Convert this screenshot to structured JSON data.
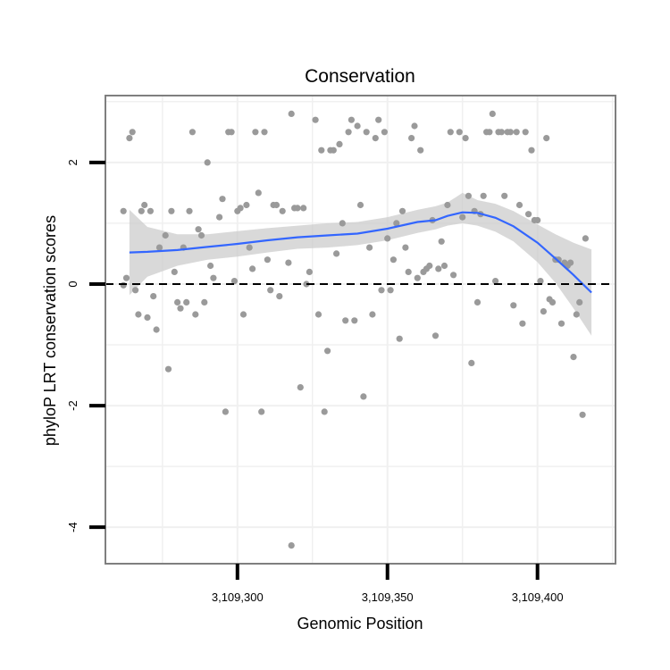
{
  "chart_data": {
    "type": "scatter",
    "title": "Conservation",
    "xlabel": "Genomic Position",
    "ylabel": "phyloP LRT conservation scores",
    "xlim": [
      3109256,
      3109426
    ],
    "ylim": [
      -4.6,
      3.1
    ],
    "x_ticks": [
      {
        "value": 3109300,
        "label": "3,109,300"
      },
      {
        "value": 3109350,
        "label": "3,109,350"
      },
      {
        "value": 3109400,
        "label": "3,109,400"
      }
    ],
    "y_ticks": [
      {
        "value": 2,
        "label": "2"
      },
      {
        "value": 0,
        "label": "0"
      },
      {
        "value": -2,
        "label": "-2"
      },
      {
        "value": -4,
        "label": "-4"
      }
    ],
    "reference_line": {
      "y": 0,
      "style": "dashed",
      "color": "#000000"
    },
    "series": [
      {
        "name": "observed scores",
        "color": "#9a9a9a",
        "points": [
          [
            3109264,
            2.4
          ],
          [
            3109265,
            2.5
          ],
          [
            3109268,
            1.2
          ],
          [
            3109269,
            1.3
          ],
          [
            3109271,
            1.2
          ],
          [
            3109274,
            0.6
          ],
          [
            3109276,
            0.8
          ],
          [
            3109277,
            -1.4
          ],
          [
            3109278,
            1.2
          ],
          [
            3109279,
            0.2
          ],
          [
            3109280,
            -0.3
          ],
          [
            3109281,
            -0.4
          ],
          [
            3109282,
            0.6
          ],
          [
            3109283,
            -0.3
          ],
          [
            3109284,
            1.2
          ],
          [
            3109285,
            2.5
          ],
          [
            3109286,
            -0.5
          ],
          [
            3109287,
            0.9
          ],
          [
            3109288,
            0.8
          ],
          [
            3109289,
            -0.3
          ],
          [
            3109290,
            2.0
          ],
          [
            3109291,
            0.3
          ],
          [
            3109292,
            0.1
          ],
          [
            3109294,
            1.1
          ],
          [
            3109295,
            1.4
          ],
          [
            3109296,
            -2.1
          ],
          [
            3109297,
            2.5
          ],
          [
            3109298,
            2.5
          ],
          [
            3109299,
            0.05
          ],
          [
            3109300,
            1.2
          ],
          [
            3109301,
            1.25
          ],
          [
            3109302,
            -0.5
          ],
          [
            3109303,
            1.3
          ],
          [
            3109304,
            0.6
          ],
          [
            3109305,
            0.25
          ],
          [
            3109306,
            2.5
          ],
          [
            3109307,
            1.5
          ],
          [
            3109308,
            -2.1
          ],
          [
            3109309,
            2.5
          ],
          [
            3109310,
            0.4
          ],
          [
            3109311,
            -0.1
          ],
          [
            3109312,
            1.3
          ],
          [
            3109313,
            1.3
          ],
          [
            3109314,
            -0.2
          ],
          [
            3109315,
            1.2
          ],
          [
            3109317,
            0.35
          ],
          [
            3109318,
            2.8
          ],
          [
            3109318,
            -4.3
          ],
          [
            3109319,
            1.25
          ],
          [
            3109320,
            1.25
          ],
          [
            3109321,
            -1.7
          ],
          [
            3109322,
            1.25
          ],
          [
            3109323,
            0.0
          ],
          [
            3109324,
            0.2
          ],
          [
            3109326,
            2.7
          ],
          [
            3109327,
            -0.5
          ],
          [
            3109328,
            2.2
          ],
          [
            3109329,
            -2.1
          ],
          [
            3109330,
            -1.1
          ],
          [
            3109331,
            2.2
          ],
          [
            3109332,
            2.2
          ],
          [
            3109333,
            0.5
          ],
          [
            3109334,
            2.3
          ],
          [
            3109335,
            1.0
          ],
          [
            3109336,
            -0.6
          ],
          [
            3109337,
            2.5
          ],
          [
            3109338,
            2.7
          ],
          [
            3109339,
            -0.6
          ],
          [
            3109340,
            2.6
          ],
          [
            3109341,
            1.3
          ],
          [
            3109342,
            -1.85
          ],
          [
            3109343,
            2.5
          ],
          [
            3109344,
            0.6
          ],
          [
            3109345,
            -0.5
          ],
          [
            3109346,
            2.4
          ],
          [
            3109347,
            2.7
          ],
          [
            3109348,
            -0.1
          ],
          [
            3109349,
            2.5
          ],
          [
            3109350,
            0.75
          ],
          [
            3109351,
            -0.1
          ],
          [
            3109352,
            0.4
          ],
          [
            3109353,
            1.0
          ],
          [
            3109354,
            -0.9
          ],
          [
            3109355,
            1.2
          ],
          [
            3109356,
            0.6
          ],
          [
            3109357,
            0.2
          ],
          [
            3109358,
            2.4
          ],
          [
            3109359,
            2.6
          ],
          [
            3109360,
            0.1
          ],
          [
            3109361,
            2.2
          ],
          [
            3109362,
            0.2
          ],
          [
            3109363,
            0.25
          ],
          [
            3109364,
            0.3
          ],
          [
            3109365,
            1.05
          ],
          [
            3109366,
            -0.85
          ],
          [
            3109367,
            0.25
          ],
          [
            3109368,
            0.7
          ],
          [
            3109369,
            0.3
          ],
          [
            3109370,
            1.3
          ],
          [
            3109371,
            2.5
          ],
          [
            3109372,
            0.15
          ],
          [
            3109374,
            2.5
          ],
          [
            3109375,
            1.1
          ],
          [
            3109376,
            2.4
          ],
          [
            3109377,
            1.45
          ],
          [
            3109378,
            -1.3
          ],
          [
            3109379,
            1.2
          ],
          [
            3109380,
            -0.3
          ],
          [
            3109381,
            1.15
          ],
          [
            3109382,
            1.45
          ],
          [
            3109383,
            2.5
          ],
          [
            3109384,
            2.5
          ],
          [
            3109385,
            2.8
          ],
          [
            3109386,
            0.05
          ],
          [
            3109387,
            2.5
          ],
          [
            3109388,
            2.5
          ],
          [
            3109389,
            1.45
          ],
          [
            3109390,
            2.5
          ],
          [
            3109391,
            2.5
          ],
          [
            3109392,
            -0.35
          ],
          [
            3109393,
            2.5
          ],
          [
            3109394,
            1.3
          ],
          [
            3109395,
            -0.65
          ],
          [
            3109396,
            2.5
          ],
          [
            3109397,
            1.15
          ],
          [
            3109398,
            2.2
          ],
          [
            3109399,
            1.05
          ],
          [
            3109400,
            1.05
          ],
          [
            3109401,
            0.05
          ],
          [
            3109402,
            -0.45
          ],
          [
            3109403,
            2.4
          ],
          [
            3109404,
            -0.25
          ],
          [
            3109405,
            -0.3
          ],
          [
            3109406,
            0.4
          ],
          [
            3109407,
            0.4
          ],
          [
            3109408,
            -0.65
          ],
          [
            3109409,
            0.35
          ],
          [
            3109410,
            0.3
          ],
          [
            3109411,
            0.35
          ],
          [
            3109412,
            -1.2
          ],
          [
            3109413,
            -0.5
          ],
          [
            3109414,
            -0.3
          ],
          [
            3109415,
            -2.15
          ],
          [
            3109416,
            0.75
          ],
          [
            3109262,
            -0.02
          ],
          [
            3109263,
            0.1
          ],
          [
            3109266,
            -0.1
          ],
          [
            3109267,
            -0.5
          ],
          [
            3109270,
            -0.55
          ],
          [
            3109272,
            -0.2
          ],
          [
            3109273,
            -0.75
          ],
          [
            3109262,
            1.2
          ]
        ]
      },
      {
        "name": "smoothed trend",
        "color": "#3366ff",
        "x": [
          3109264,
          3109270,
          3109280,
          3109290,
          3109300,
          3109310,
          3109320,
          3109330,
          3109340,
          3109350,
          3109360,
          3109366,
          3109370,
          3109375,
          3109380,
          3109386,
          3109392,
          3109400,
          3109406,
          3109412,
          3109418
        ],
        "y": [
          0.52,
          0.53,
          0.56,
          0.61,
          0.66,
          0.72,
          0.77,
          0.8,
          0.83,
          0.91,
          1.02,
          1.05,
          1.12,
          1.18,
          1.17,
          1.09,
          0.95,
          0.68,
          0.42,
          0.15,
          -0.14
        ],
        "band_low": [
          -0.18,
          0.12,
          0.3,
          0.4,
          0.45,
          0.52,
          0.58,
          0.6,
          0.64,
          0.72,
          0.84,
          0.9,
          0.96,
          1.0,
          0.96,
          0.86,
          0.7,
          0.36,
          0.02,
          -0.4,
          -0.85
        ],
        "band_high": [
          1.22,
          0.94,
          0.82,
          0.82,
          0.87,
          0.92,
          0.96,
          1.0,
          1.02,
          1.1,
          1.22,
          1.28,
          1.34,
          1.5,
          1.38,
          1.32,
          1.2,
          0.98,
          0.82,
          0.68,
          0.57
        ]
      }
    ],
    "grid": true,
    "legend": "none"
  }
}
